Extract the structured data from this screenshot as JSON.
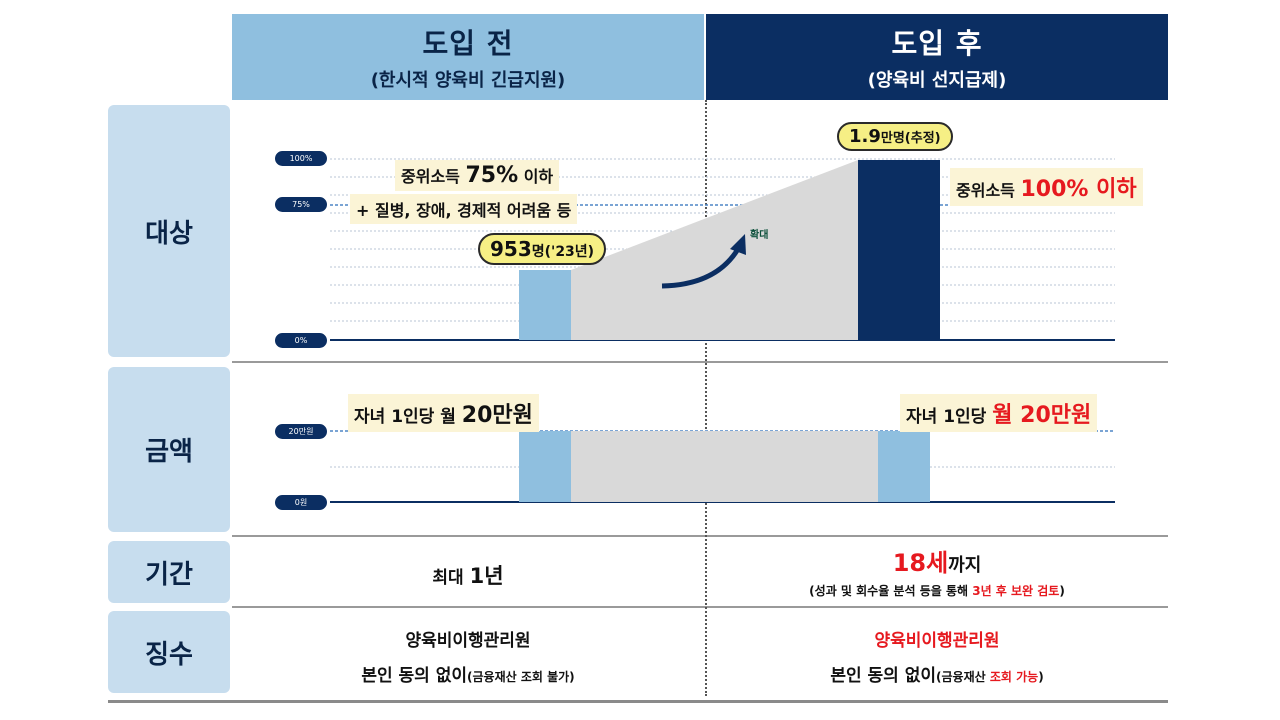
{
  "headers": {
    "before": {
      "title": "도입 전",
      "subtitle": "(한시적 양육비 긴급지원)"
    },
    "after": {
      "title": "도입 후",
      "subtitle": "(양육비 선지급제)"
    }
  },
  "rows": {
    "target": {
      "label": "대상",
      "y_ticks": [
        "100%",
        "75%",
        "0%"
      ],
      "before": {
        "line1_pre": "중위소득 ",
        "line1_num": "75%",
        "line1_post": " 이하",
        "line2": "+ 질병, 장애, 경제적 어려움 등",
        "count_num": "953",
        "count_unit": "명('23년)"
      },
      "expand_label": "확대",
      "after": {
        "count_num": "1.9",
        "count_unit": "만명(추정)",
        "criteria_pre": "중위소득 ",
        "criteria_hi": "100% 이하"
      }
    },
    "amount": {
      "label": "금액",
      "y_ticks": [
        "20만원",
        "0원"
      ],
      "before": {
        "pre": "자녀 1인당 월 ",
        "num": "20만원"
      },
      "after": {
        "pre": "자녀 1인당 ",
        "hi": "월 20만원"
      }
    },
    "period": {
      "label": "기간",
      "before": {
        "pre": "최대 ",
        "num": "1년"
      },
      "after": {
        "num": "18세",
        "post": "까지",
        "note_pre": "(성과 및 회수율 분석 등을 통해 ",
        "note_hi": "3년 후 보완 검토",
        "note_post": ")"
      }
    },
    "collection": {
      "label": "징수",
      "before": {
        "agency": "양육비이행관리원",
        "consent": "본인 동의 없이",
        "consent_note": "(금융재산 조회 불가)"
      },
      "after": {
        "agency": "양육비이행관리원",
        "consent": "본인 동의 없이",
        "consent_note_pre": "(금융재산 ",
        "consent_note_hi": "조회 가능",
        "consent_note_post": ")"
      }
    }
  },
  "chart_data": [
    {
      "type": "bar",
      "categories": [
        "도입 전",
        "도입 후"
      ],
      "values": [
        953,
        19000
      ],
      "y_ticks": [
        "0%",
        "75%",
        "100%"
      ]
    },
    {
      "type": "bar",
      "categories": [
        "도입 전",
        "도입 후"
      ],
      "values": [
        200000,
        200000
      ],
      "y_ticks": [
        "0원",
        "20만원"
      ]
    }
  ],
  "colors": {
    "header_before": "#8fbfdf",
    "header_after": "#0b2e62",
    "bar_before": "#8fbfdf",
    "bar_after": "#0b2e62",
    "highlight": "#e6191f"
  }
}
